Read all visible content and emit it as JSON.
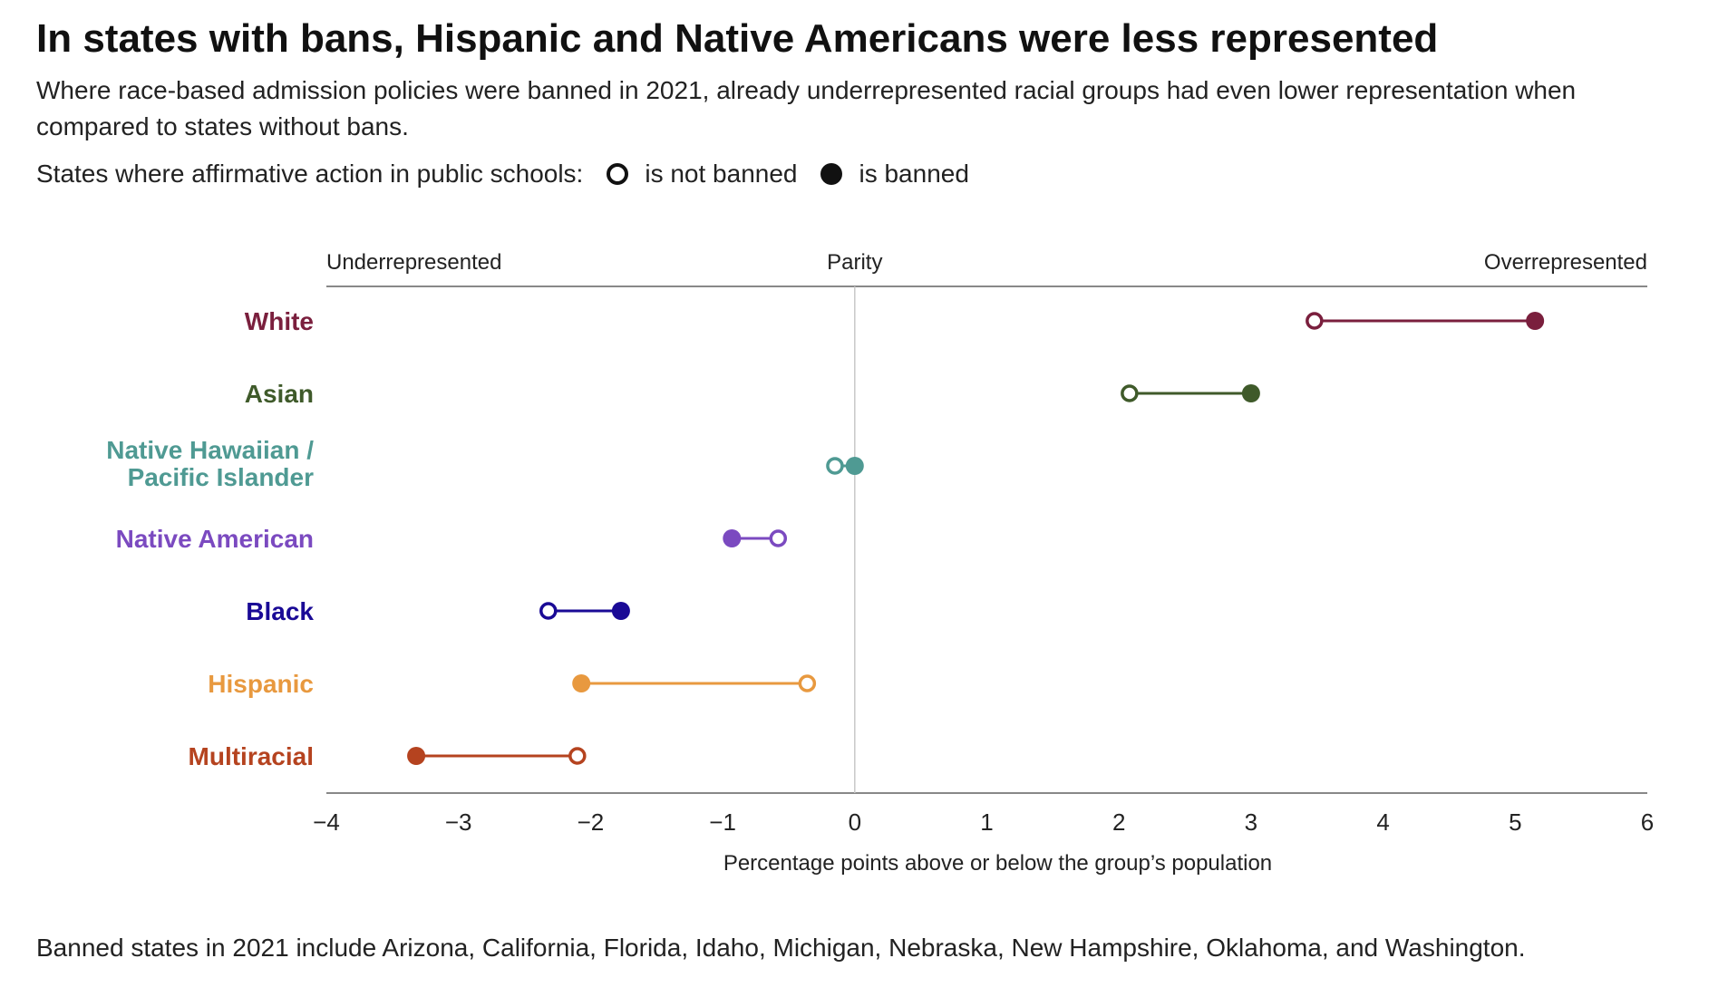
{
  "title": "In states with bans, Hispanic and Native Americans were less represented",
  "subtitle": "Where race-based admission policies were banned in 2021, already underrepresented racial groups had even lower representation when compared to states without bans.",
  "legend": {
    "prefix": "States where affirmative action in public schools:",
    "not_banned": "is not banned",
    "banned": "is banned"
  },
  "footnote": "Banned states in 2021 include Arizona, California, Florida, Idaho, Michigan, Nebraska, New Hampshire, Oklahoma, and Washington.",
  "chart_data": {
    "type": "dumbbell",
    "xlabel": "Percentage points above or below the group’s population",
    "xlim": [
      -4,
      6
    ],
    "xticks": [
      -4,
      -3,
      -2,
      -1,
      0,
      1,
      2,
      3,
      4,
      5,
      6
    ],
    "top_annotations": {
      "left": "Underrepresented",
      "center": "Parity",
      "right": "Overrepresented"
    },
    "grid": false,
    "groups": [
      {
        "name": "White",
        "color": "#7a1f3d",
        "not_banned": 3.48,
        "banned": 5.15
      },
      {
        "name": "Asian",
        "color": "#3f5a2a",
        "not_banned": 2.08,
        "banned": 3.0
      },
      {
        "name": "Native Hawaiian / Pacific Islander",
        "color": "#4f9a93",
        "not_banned": -0.15,
        "banned": 0.0
      },
      {
        "name": "Native American",
        "color": "#7b4ac0",
        "not_banned": -0.58,
        "banned": -0.93
      },
      {
        "name": "Black",
        "color": "#1a0a96",
        "not_banned": -2.32,
        "banned": -1.77
      },
      {
        "name": "Hispanic",
        "color": "#e8993f",
        "not_banned": -0.36,
        "banned": -2.07
      },
      {
        "name": "Multiracial",
        "color": "#b5431f",
        "not_banned": -2.1,
        "banned": -3.32
      }
    ]
  }
}
